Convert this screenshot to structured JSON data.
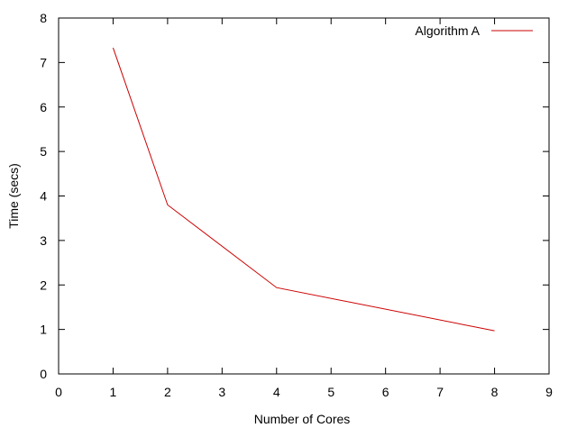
{
  "chart_data": {
    "type": "line",
    "title": "",
    "xlabel": "Number of Cores",
    "ylabel": "Time (secs)",
    "xlim": [
      0,
      9
    ],
    "ylim": [
      0,
      8
    ],
    "xticks": [
      0,
      1,
      2,
      3,
      4,
      5,
      6,
      7,
      8,
      9
    ],
    "yticks": [
      0,
      1,
      2,
      3,
      4,
      5,
      6,
      7,
      8
    ],
    "grid": false,
    "legend_position": "top-right",
    "series": [
      {
        "name": "Algorithm A",
        "color": "#cc0000",
        "x": [
          1,
          2,
          4,
          8
        ],
        "y": [
          7.33,
          3.8,
          1.94,
          0.97
        ]
      }
    ]
  }
}
